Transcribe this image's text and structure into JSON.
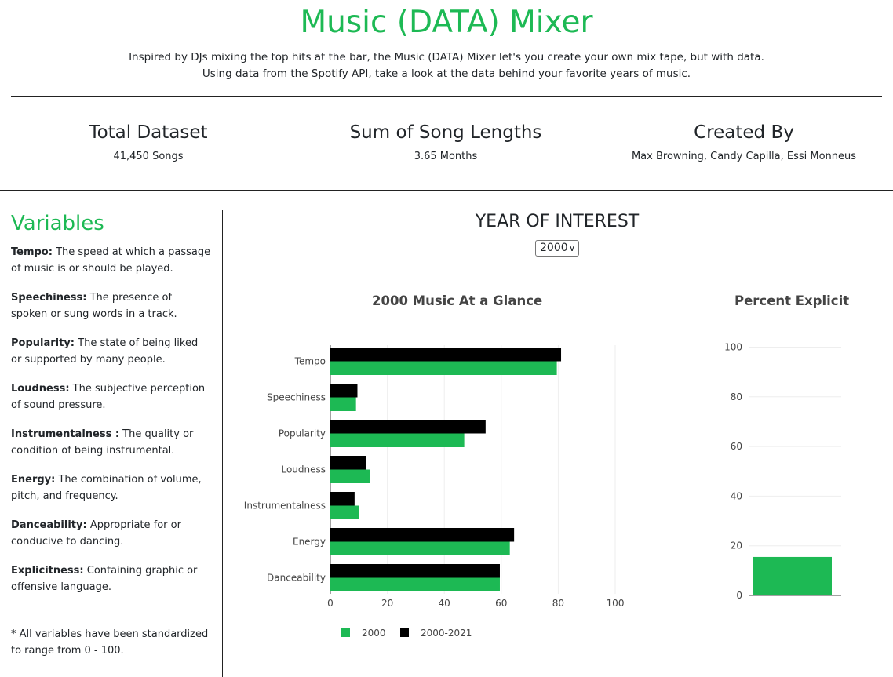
{
  "header": {
    "title": "Music (DATA) Mixer",
    "intro_line1": "Inspired by DJs mixing the top hits at the bar, the Music (DATA) Mixer let's you create your own mix tape, but with data.",
    "intro_line2": "Using data from the Spotify API, take a look at the data behind your favorite years of music."
  },
  "stats": [
    {
      "title": "Total Dataset",
      "value": "41,450 Songs"
    },
    {
      "title": "Sum of Song Lengths",
      "value": "3.65 Months"
    },
    {
      "title": "Created By",
      "value": "Max Browning, Candy Capilla, Essi Monneus"
    }
  ],
  "sidebar": {
    "title": "Variables",
    "items": [
      {
        "term": "Tempo:",
        "def": " The speed at which a passage of music is or should be played."
      },
      {
        "term": "Speechiness:",
        "def": " The presence of spoken or sung words in a track."
      },
      {
        "term": "Popularity:",
        "def": " The state of being liked or supported by many people."
      },
      {
        "term": "Loudness:",
        "def": " The subjective perception of sound pressure."
      },
      {
        "term": "Instrumentalness :",
        "def": " The quality or condition of being instrumental."
      },
      {
        "term": "Energy:",
        "def": " The combination of volume, pitch, and frequency."
      },
      {
        "term": "Danceability:",
        "def": " Appropriate for or conducive to dancing."
      },
      {
        "term": "Explicitness:",
        "def": " Containing graphic or offensive language."
      }
    ],
    "note": "* All variables have been standardized to range from 0 - 100."
  },
  "year_selector": {
    "label": "YEAR OF INTEREST",
    "selected": "2000"
  },
  "colors": {
    "accent": "#1db954",
    "series_2000": "#1db954",
    "series_all": "#000000"
  },
  "chart_data": [
    {
      "type": "bar",
      "orientation": "horizontal",
      "title": "2000 Music At a Glance",
      "categories": [
        "Tempo",
        "Speechiness",
        "Popularity",
        "Loudness",
        "Instrumentalness",
        "Energy",
        "Danceability"
      ],
      "series": [
        {
          "name": "2000",
          "color": "#1db954",
          "values": [
            79.5,
            9,
            47,
            14,
            10,
            63,
            59.5
          ]
        },
        {
          "name": "2000-2021",
          "color": "#000000",
          "values": [
            81,
            9.5,
            54.5,
            12.5,
            8.5,
            64.5,
            59.5
          ]
        }
      ],
      "xlim": [
        0,
        100
      ],
      "xticks": [
        0,
        20,
        40,
        60,
        80,
        100
      ],
      "grid": true,
      "legend": "bottom"
    },
    {
      "type": "bar",
      "title": "Percent Explicit",
      "categories": [
        ""
      ],
      "values": [
        15.5
      ],
      "ylim": [
        0,
        100
      ],
      "yticks": [
        0,
        20,
        40,
        60,
        80,
        100
      ],
      "grid": true
    }
  ]
}
